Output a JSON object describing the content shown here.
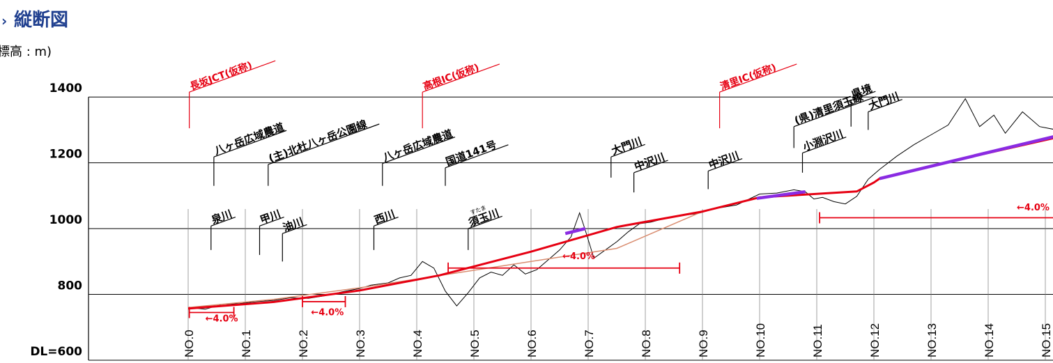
{
  "header": {
    "title": "縦断図",
    "unit_label": "標高 : m)"
  },
  "colors": {
    "title": "#1f3f8f",
    "ic_label": "#e60012",
    "plan": "#e60012",
    "bridge_or_tunnel": "#8a2be2",
    "ground_line": "#000000",
    "ground_fill": "#e6e6e6",
    "earthwork_line": "#d98c6f",
    "grid": "#000000"
  },
  "chart_data": {
    "type": "line",
    "title": "縦断図",
    "ylabel": "標高 : m)",
    "xlabel": "",
    "ylim": [
      600,
      1450
    ],
    "y_ticks": [
      {
        "value": 1400,
        "label": "1400"
      },
      {
        "value": 1200,
        "label": "1200"
      },
      {
        "value": 1000,
        "label": "1000"
      },
      {
        "value": 800,
        "label": "800"
      },
      {
        "value": 600,
        "label": "DL=600"
      }
    ],
    "grid": true,
    "stations": [
      "NO.0",
      "NO.1",
      "NO.2",
      "NO.3",
      "NO.4",
      "NO.5",
      "NO.6",
      "NO.7",
      "NO.8",
      "NO.9",
      "NO.10",
      "NO.11",
      "NO.12",
      "NO.13",
      "NO.14",
      "NO.15"
    ],
    "xlim": [
      0,
      15.4
    ],
    "series": [
      {
        "kind": "ground",
        "points": [
          [
            0,
            760
          ],
          [
            0.3,
            755
          ],
          [
            0.6,
            770
          ],
          [
            0.9,
            772
          ],
          [
            1.2,
            778
          ],
          [
            1.5,
            782
          ],
          [
            1.8,
            790
          ],
          [
            2.1,
            788
          ],
          [
            2.4,
            796
          ],
          [
            2.7,
            808
          ],
          [
            3.0,
            818
          ],
          [
            3.2,
            828
          ],
          [
            3.5,
            835
          ],
          [
            3.7,
            850
          ],
          [
            3.9,
            858
          ],
          [
            4.1,
            900
          ],
          [
            4.3,
            880
          ],
          [
            4.5,
            810
          ],
          [
            4.7,
            765
          ],
          [
            4.9,
            805
          ],
          [
            5.1,
            850
          ],
          [
            5.3,
            868
          ],
          [
            5.5,
            858
          ],
          [
            5.7,
            890
          ],
          [
            5.9,
            862
          ],
          [
            6.1,
            875
          ],
          [
            6.3,
            905
          ],
          [
            6.5,
            935
          ],
          [
            6.7,
            975
          ],
          [
            6.85,
            1048
          ],
          [
            6.95,
            995
          ],
          [
            7.1,
            910
          ],
          [
            7.3,
            935
          ],
          [
            7.5,
            960
          ],
          [
            7.7,
            990
          ],
          [
            7.9,
            1015
          ],
          [
            8.1,
            1020
          ],
          [
            8.5,
            1038
          ],
          [
            8.9,
            1045
          ],
          [
            9.2,
            1060
          ],
          [
            9.6,
            1072
          ],
          [
            10.0,
            1105
          ],
          [
            10.3,
            1108
          ],
          [
            10.6,
            1118
          ],
          [
            10.8,
            1112
          ],
          [
            10.95,
            1090
          ],
          [
            11.1,
            1095
          ],
          [
            11.3,
            1082
          ],
          [
            11.5,
            1075
          ],
          [
            11.7,
            1098
          ],
          [
            11.9,
            1150
          ],
          [
            12.1,
            1180
          ],
          [
            12.4,
            1220
          ],
          [
            12.7,
            1255
          ],
          [
            13.0,
            1285
          ],
          [
            13.3,
            1315
          ],
          [
            13.6,
            1395
          ],
          [
            13.85,
            1310
          ],
          [
            14.1,
            1345
          ],
          [
            14.3,
            1290
          ],
          [
            14.6,
            1355
          ],
          [
            14.9,
            1310
          ],
          [
            15.2,
            1300
          ],
          [
            15.4,
            1275
          ]
        ]
      },
      {
        "kind": "earthwork",
        "points": [
          [
            0,
            760
          ],
          [
            1.5,
            785
          ],
          [
            3.0,
            820
          ],
          [
            4.5,
            860
          ],
          [
            6.0,
            900
          ],
          [
            7.5,
            940
          ],
          [
            9.0,
            1052
          ]
        ]
      },
      {
        "kind": "plan",
        "points": [
          [
            0,
            757
          ],
          [
            1.5,
            777
          ],
          [
            3.0,
            812
          ],
          [
            4.4,
            858
          ],
          [
            6.0,
            930
          ],
          [
            7.5,
            1005
          ],
          [
            9.0,
            1052
          ],
          [
            10.0,
            1095
          ],
          [
            11.4,
            1110
          ],
          [
            11.7,
            1113
          ],
          [
            12.0,
            1140
          ],
          [
            12.1,
            1152
          ],
          [
            13.0,
            1190
          ],
          [
            14.0,
            1230
          ],
          [
            15.4,
            1285
          ]
        ]
      },
      {
        "kind": "bridge_or_tunnel",
        "segments": [
          [
            [
              6.6,
              985
            ],
            [
              6.95,
              1000
            ]
          ],
          [
            [
              9.95,
              1092
            ],
            [
              10.8,
              1112
            ]
          ],
          [
            [
              12.1,
              1152
            ],
            [
              15.4,
              1290
            ]
          ]
        ]
      }
    ],
    "grade_annotations": [
      {
        "label": "←4.0%",
        "x1": 0.02,
        "x2": 0.8,
        "y": 745,
        "text_x": 0.3,
        "text_y": 718
      },
      {
        "label": "←4.0%",
        "x1": 2.0,
        "x2": 2.75,
        "y": 778,
        "text_x": 2.15,
        "text_y": 737
      },
      {
        "label": "←4.0%",
        "x1": 4.55,
        "x2": 8.6,
        "y": 880,
        "text_x": 6.55,
        "text_y": 907
      },
      {
        "label": "←4.0%",
        "x1": 11.05,
        "x2": 15.4,
        "y": 1033,
        "text_x": 14.5,
        "text_y": 1055
      }
    ],
    "annotations": [
      {
        "text": "長坂JCT(仮称)",
        "color": "red",
        "x": 0.02,
        "label_y": 1415,
        "line_bottom": 1305
      },
      {
        "text": "高根IC(仮称)",
        "color": "red",
        "x": 4.1,
        "label_y": 1415,
        "line_bottom": 1305
      },
      {
        "text": "清里IC(仮称)",
        "color": "red",
        "x": 9.3,
        "label_y": 1415,
        "line_bottom": 1305
      },
      {
        "text": "県境",
        "color": "black",
        "x": 11.6,
        "label_y": 1390,
        "line_bottom": 1310
      },
      {
        "text": "大門川",
        "color": "black",
        "x": 11.9,
        "label_y": 1355,
        "line_bottom": 1300
      },
      {
        "text": "(県)清里須玉線",
        "color": "black",
        "x": 10.6,
        "label_y": 1310,
        "line_bottom": 1245
      },
      {
        "text": "小淵沢川",
        "color": "black",
        "x": 10.75,
        "label_y": 1230,
        "line_bottom": 1170
      },
      {
        "text": "八ヶ岳広域農道",
        "color": "black",
        "x": 0.45,
        "label_y": 1218,
        "line_bottom": 1130
      },
      {
        "text": "(主)北杜八ヶ岳公園線",
        "color": "black",
        "x": 1.4,
        "label_y": 1195,
        "line_bottom": 1130
      },
      {
        "text": "八ヶ岳広域農道",
        "color": "black",
        "x": 3.4,
        "label_y": 1198,
        "line_bottom": 1130
      },
      {
        "text": "国道141号",
        "color": "black",
        "x": 4.5,
        "label_y": 1185,
        "line_bottom": 1130
      },
      {
        "text": "大門川",
        "color": "black",
        "x": 7.4,
        "label_y": 1218,
        "line_bottom": 1155
      },
      {
        "text": "中沢川",
        "color": "black",
        "x": 7.8,
        "label_y": 1170,
        "line_bottom": 1110
      },
      {
        "text": "中沢川",
        "color": "black",
        "x": 9.1,
        "label_y": 1175,
        "line_bottom": 1120
      },
      {
        "text": "泉川",
        "color": "black",
        "x": 0.4,
        "label_y": 1008,
        "line_bottom": 935
      },
      {
        "text": "甲川",
        "color": "black",
        "x": 1.25,
        "label_y": 1008,
        "line_bottom": 920
      },
      {
        "text": "油川",
        "color": "black",
        "x": 1.65,
        "label_y": 985,
        "line_bottom": 900
      },
      {
        "text": "西川",
        "color": "black",
        "x": 3.25,
        "label_y": 1008,
        "line_bottom": 935
      },
      {
        "text": "須玉川",
        "color": "black",
        "x": 4.9,
        "label_y": 1000,
        "line_bottom": 935,
        "ruby": "すたま"
      }
    ]
  }
}
